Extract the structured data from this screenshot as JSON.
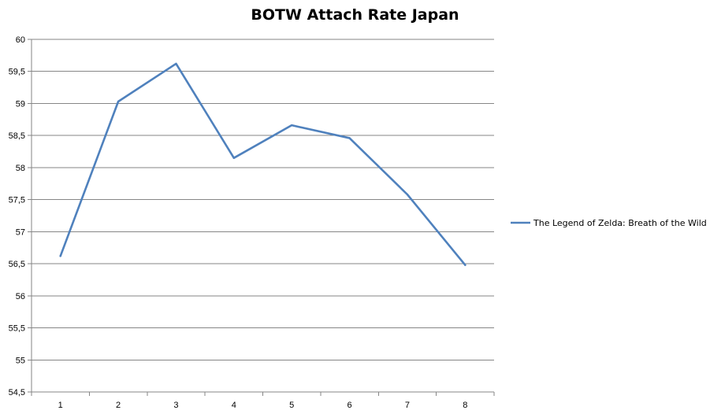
{
  "chart_data": {
    "type": "line",
    "title": "BOTW Attach Rate Japan",
    "xlabel": "",
    "ylabel": "",
    "categories": [
      "1",
      "2",
      "3",
      "4",
      "5",
      "6",
      "7",
      "8"
    ],
    "series": [
      {
        "name": "The Legend of Zelda: Breath of the Wild",
        "values": [
          56.62,
          59.03,
          59.62,
          58.15,
          58.66,
          58.46,
          57.58,
          56.48
        ],
        "color": "#4F81BD"
      }
    ],
    "ylim": [
      54.5,
      60
    ],
    "yticks": [
      "54,5",
      "55",
      "55,5",
      "56",
      "56,5",
      "57",
      "57,5",
      "58",
      "58,5",
      "59",
      "59,5",
      "60"
    ],
    "grid": true,
    "legend_position": "right"
  }
}
